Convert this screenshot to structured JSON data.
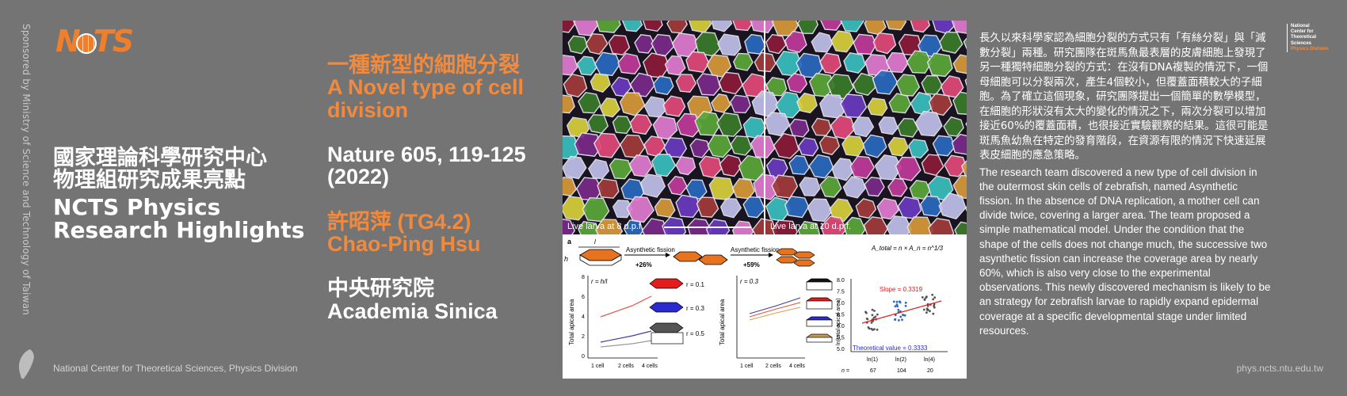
{
  "sponsor": "Sponsored by Ministry of Science and Technology of Taiwan",
  "logo": {
    "text_left": "N",
    "text_right": "TS"
  },
  "title": {
    "zh_line1": "國家理論科學研究中心",
    "zh_line2": "物理組研究成果亮點",
    "en_line1": "NCTS Physics",
    "en_line2": "Research Highlights"
  },
  "paper": {
    "title_zh": "一種新型的細胞分裂",
    "title_en": "A Novel type of cell division",
    "journal": "Nature 605, 119-125 (2022)",
    "author_zh": "許昭萍 (TG4.2)",
    "author_en": "Chao-Ping Hsu",
    "inst_zh": "中央研究院",
    "inst_en": "Academia Sinica"
  },
  "figure": {
    "caption_left": "Live larva at 8 d.p.f.",
    "caption_right": "Live larva at 10 d.p.f.",
    "label_a": "a",
    "fission1": "Asynthetic fission",
    "fission2": "Asynthetic fission",
    "gain1": "+26%",
    "gain2": "+59%",
    "formula": "A_total = n × A_n = n^1/3",
    "r_left": "r = h/l",
    "r_mid": "r = 0.3",
    "r_values": [
      "r = 0.1",
      "r = 0.3",
      "r = 0.5"
    ],
    "ylabel": "Total apical area",
    "ylabel_right": "ln(total apical area)",
    "xticks": [
      "1 cell",
      "2 cells",
      "4 cells"
    ],
    "slope": "Slope = 0.3319",
    "theoretical": "Theoretical value = 0.3333",
    "ln_ticks": [
      "ln(1)",
      "ln(2)",
      "ln(4)"
    ],
    "n_label": "n =",
    "n_values": [
      "67",
      "104",
      "20"
    ],
    "h_label": "h",
    "l_label": "l",
    "yticks_left": [
      "8",
      "6",
      "4",
      "2",
      "0"
    ],
    "yticks_right": [
      "8.0",
      "7.5",
      "7.0",
      "6.5",
      "6.0",
      "5.5",
      "5.0"
    ]
  },
  "description": {
    "zh": "長久以來科學家認為細胞分裂的方式只有「有絲分裂」與「減數分裂」兩種。研究團隊在斑馬魚最表層的皮膚細胞上發現了另一種獨特細胞分裂的方式：在沒有DNA複製的情況下，一個母細胞可以分裂兩次，產生4個較小，但覆蓋面積較大的子細胞。為了確立這個現象，研究團隊提出一個簡單的數學模型，在細胞的形狀沒有太大的變化的情況之下，兩次分裂可以增加接近60%的覆蓋面積，也很接近實驗觀察的結果。這很可能是斑馬魚幼魚在特定的發育階段，在資源有限的情況下快速延展表皮細胞的應急策略。",
    "en": "The research team discovered a new type of cell division in the outermost skin cells of zebrafish, named Asynthetic fission. In the absence of DNA replication, a mother cell can divide twice, covering a larger area. The team proposed a simple mathematical model. Under the condition that the shape of the cells does not change much, the successive two asynthetic fission can increase the coverage area by nearly 60%, which is also very close to the experimental observations. This newly discovered mechanism is likely to be an strategy for zebrafish larvae to rapidly expand epidermal coverage at a specific developmental stage under limited resources."
  },
  "badge": {
    "l1": "National",
    "l2": "Center for",
    "l3": "Theoretical",
    "l4": "Sciences",
    "l5": "Physics Division"
  },
  "footer": {
    "left": "National Center for Theoretical Sciences, Physics Division",
    "right": "phys.ncts.ntu.edu.tw"
  },
  "colors": {
    "background": "#747474",
    "accent": "#f28a3d",
    "logo": "#f07f2c"
  }
}
